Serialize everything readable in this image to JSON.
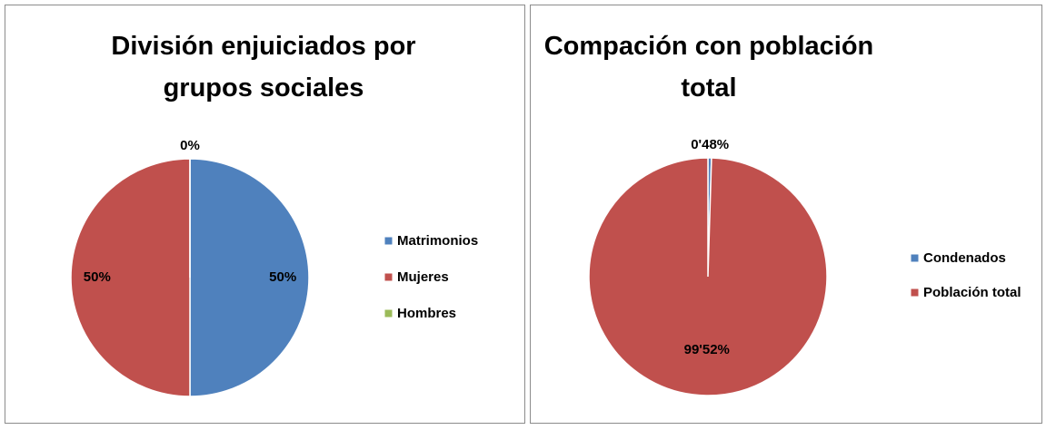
{
  "chart_data": [
    {
      "type": "pie",
      "title": "División enjuiciados por grupos sociales",
      "categories": [
        "Matrimonios",
        "Mujeres",
        "Hombres"
      ],
      "values": [
        50,
        50,
        0
      ],
      "value_labels": [
        "50%",
        "50%",
        "0%"
      ],
      "colors": [
        "#4f81bd",
        "#c0504d",
        "#9bbb59"
      ],
      "legend": "right"
    },
    {
      "type": "pie",
      "title": "Compación con población total",
      "categories": [
        "Condenados",
        "Población total"
      ],
      "values": [
        0.48,
        99.52
      ],
      "value_labels": [
        "0'48%",
        "99'52%"
      ],
      "colors": [
        "#4f81bd",
        "#c0504d"
      ],
      "legend": "right"
    }
  ]
}
